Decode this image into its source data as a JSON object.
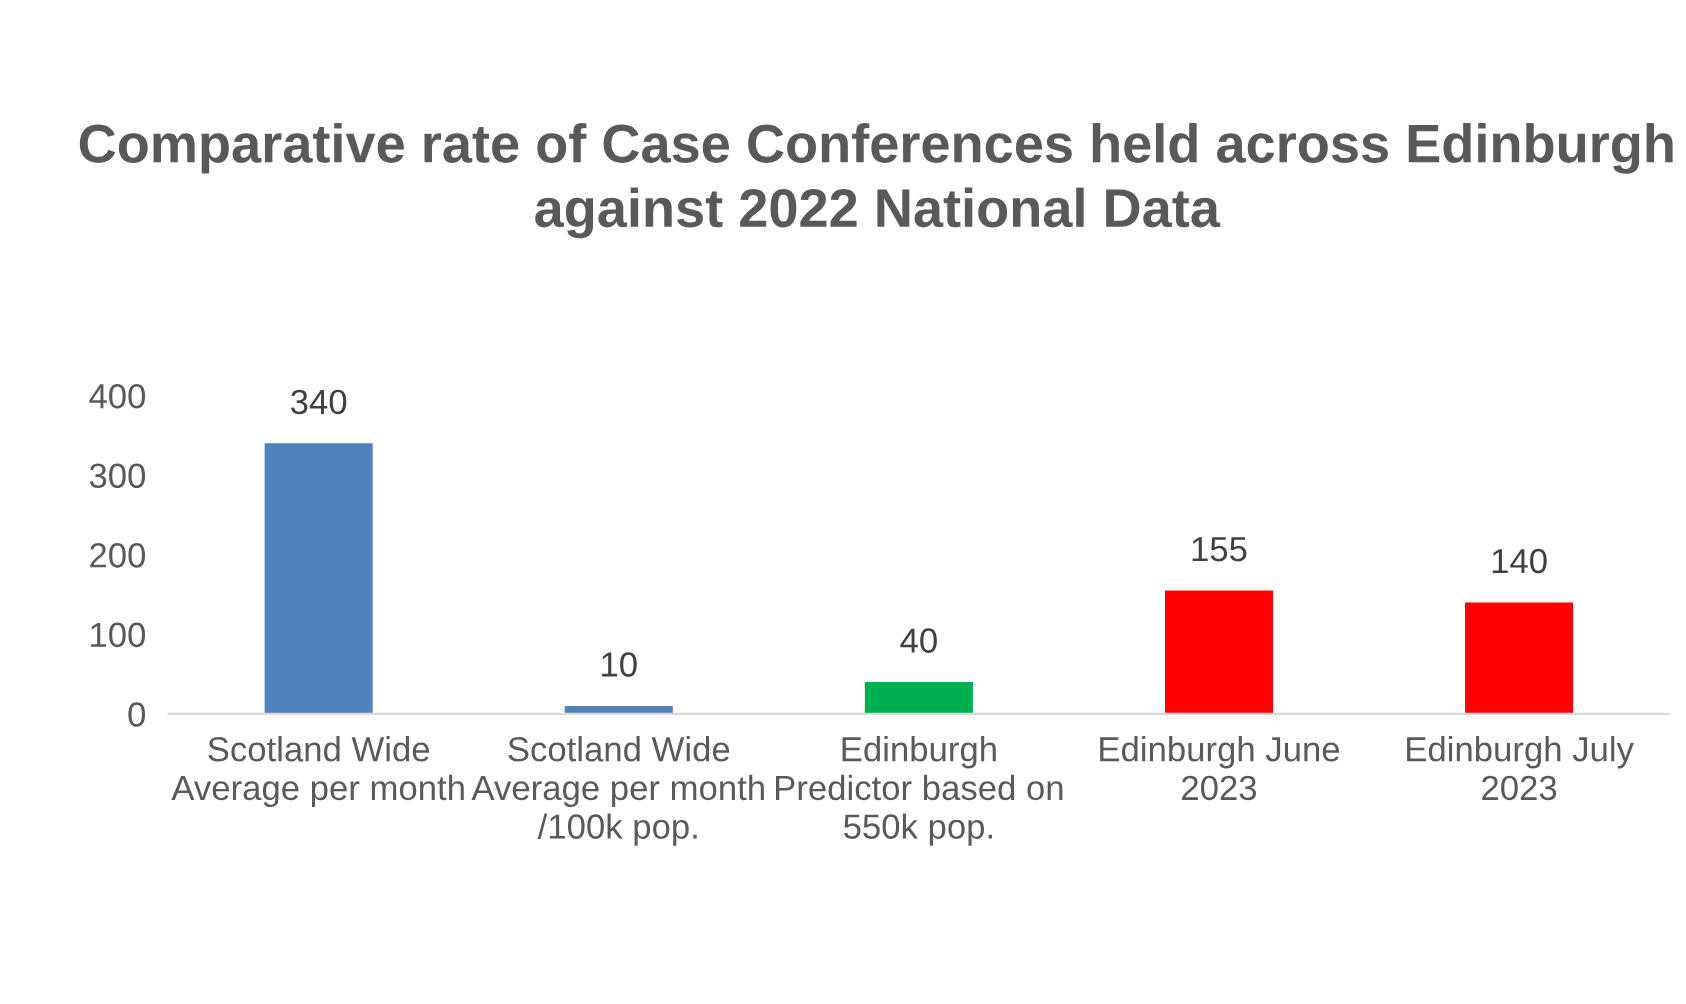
{
  "chart_data": {
    "type": "bar",
    "title": "Comparative rate of Case Conferences held across Edinburgh against 2022 National Data",
    "categories": [
      "Scotland Wide Average per month",
      "Scotland Wide Average per month /100k pop.",
      "Edinburgh Predictor based on 550k pop.",
      "Edinburgh June 2023",
      "Edinburgh July 2023"
    ],
    "values": [
      340,
      10,
      40,
      155,
      140
    ],
    "colors": [
      "#4f81bd",
      "#4f81bd",
      "#00b050",
      "#ff0000",
      "#ff0000"
    ],
    "ylim": [
      0,
      400
    ],
    "yticks": [
      0,
      100,
      200,
      300,
      400
    ],
    "grid": false,
    "data_labels": true
  }
}
